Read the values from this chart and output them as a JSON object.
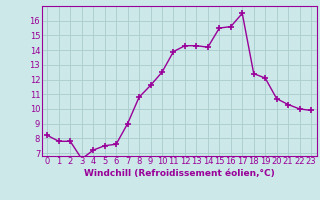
{
  "x": [
    0,
    1,
    2,
    3,
    4,
    5,
    6,
    7,
    8,
    9,
    10,
    11,
    12,
    13,
    14,
    15,
    16,
    17,
    18,
    19,
    20,
    21,
    22,
    23
  ],
  "y": [
    8.2,
    7.8,
    7.8,
    6.6,
    7.2,
    7.5,
    7.6,
    9.0,
    10.8,
    11.6,
    12.5,
    13.9,
    14.3,
    14.3,
    14.2,
    15.5,
    15.6,
    16.5,
    12.4,
    12.1,
    10.7,
    10.3,
    10.0,
    9.9
  ],
  "line_color": "#990099",
  "marker": "+",
  "marker_size": 4,
  "marker_lw": 1.2,
  "bg_color": "#cce8e8",
  "grid_color": "#aacccc",
  "xlabel": "Windchill (Refroidissement éolien,°C)",
  "xlabel_fontsize": 6.5,
  "xtick_labels": [
    "0",
    "1",
    "2",
    "3",
    "4",
    "5",
    "6",
    "7",
    "8",
    "9",
    "10",
    "11",
    "12",
    "13",
    "14",
    "15",
    "16",
    "17",
    "18",
    "19",
    "20",
    "21",
    "22",
    "23"
  ],
  "ytick_min": 7,
  "ytick_max": 16,
  "ylim": [
    6.8,
    17.0
  ],
  "xlim": [
    -0.5,
    23.5
  ],
  "tick_fontsize": 6.0,
  "line_width": 1.0,
  "linestyle": "-"
}
